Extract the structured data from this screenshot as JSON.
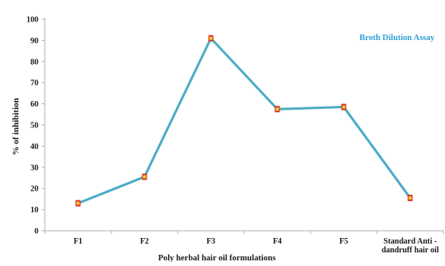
{
  "chart_data": {
    "type": "line",
    "title": "",
    "legend": {
      "label": "Broth Dilution Assay",
      "placement": "top-right"
    },
    "xlabel": "Poly herbal hair oil formulations",
    "ylabel": "% of inhibition",
    "categories": [
      "F1",
      "F2",
      "F3",
      "F4",
      "F5",
      [
        "Standard Anti -",
        "dandruff  hair oil"
      ]
    ],
    "yticks": [
      0,
      10,
      20,
      30,
      40,
      50,
      60,
      70,
      80,
      90,
      100
    ],
    "ylim": [
      0,
      100
    ],
    "grid": false,
    "series": [
      {
        "name": "Broth Dilution Assay",
        "values": [
          13,
          25.5,
          91,
          57.5,
          58.5,
          15.5
        ]
      }
    ]
  },
  "colors": {
    "line": "#4bacc6",
    "marker_fill": "#f4d23a",
    "marker_edge": "#d9341f",
    "axis": "#b0b0b0",
    "text": "#1a1a1a",
    "legend_text": "#2e9fd8"
  }
}
